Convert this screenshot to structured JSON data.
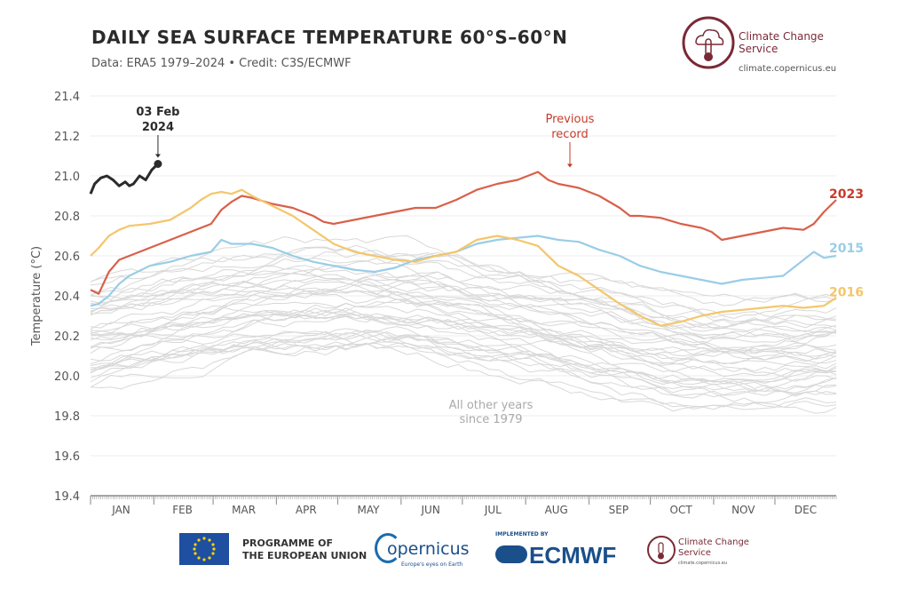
{
  "header": {
    "title": "DAILY SEA SURFACE TEMPERATURE 60°S–60°N",
    "subtitle": "Data: ERA5 1979–2024 • Credit: C3S/ECMWF"
  },
  "logo": {
    "name": "Climate Change Service",
    "url": "climate.copernicus.eu"
  },
  "footer": {
    "eu_line1": "PROGRAMME OF",
    "eu_line2": "THE EUROPEAN UNION",
    "copernicus_word": "opernicus",
    "copernicus_tag": "Europe's eyes on Earth",
    "ecmwf_impl": "IMPLEMENTED BY",
    "ecmwf_word": "ECMWF",
    "c3s_name": "Climate Change Service",
    "c3s_url": "climate.copernicus.eu"
  },
  "colors": {
    "y2023": "#d9604a",
    "y2015": "#9acde6",
    "y2016": "#f4c66b",
    "y2024": "#2b2b2b",
    "other": "#d8d8d8",
    "label2023": "#c63b2b",
    "annotation_red": "#c63b2b"
  },
  "chart_data": {
    "type": "line",
    "ylabel": "Temperature (°C)",
    "ylim": [
      19.4,
      21.4
    ],
    "yticks": [
      19.4,
      19.6,
      19.8,
      20.0,
      20.2,
      20.4,
      20.6,
      20.8,
      21.0,
      21.2,
      21.4
    ],
    "ytick_labels": [
      "19.4",
      "19.6",
      "19.8",
      "20.0",
      "20.2",
      "20.4",
      "20.6",
      "20.8",
      "21.0",
      "21.2",
      "21.4"
    ],
    "xlim": [
      1,
      366
    ],
    "months": [
      "JAN",
      "FEB",
      "MAR",
      "APR",
      "MAY",
      "JUN",
      "JUL",
      "AUG",
      "SEP",
      "OCT",
      "NOV",
      "DEC"
    ],
    "grid": true,
    "series": [
      {
        "name": "2023",
        "key": "y2023",
        "x": [
          1,
          5,
          10,
          15,
          20,
          30,
          40,
          50,
          60,
          65,
          70,
          75,
          80,
          90,
          100,
          110,
          115,
          120,
          130,
          140,
          150,
          160,
          170,
          180,
          190,
          200,
          210,
          215,
          220,
          225,
          230,
          240,
          250,
          260,
          265,
          270,
          280,
          290,
          300,
          305,
          310,
          320,
          330,
          340,
          350,
          355,
          360,
          366
        ],
        "y": [
          20.43,
          20.41,
          20.52,
          20.58,
          20.6,
          20.64,
          20.68,
          20.72,
          20.76,
          20.83,
          20.87,
          20.9,
          20.89,
          20.86,
          20.84,
          20.8,
          20.77,
          20.76,
          20.78,
          20.8,
          20.82,
          20.84,
          20.84,
          20.88,
          20.93,
          20.96,
          20.98,
          21.0,
          21.02,
          20.98,
          20.96,
          20.94,
          20.9,
          20.84,
          20.8,
          20.8,
          20.79,
          20.76,
          20.74,
          20.72,
          20.68,
          20.7,
          20.72,
          20.74,
          20.73,
          20.76,
          20.82,
          20.88
        ]
      },
      {
        "name": "2015",
        "key": "y2015",
        "x": [
          1,
          5,
          10,
          15,
          20,
          30,
          40,
          50,
          60,
          65,
          70,
          80,
          90,
          100,
          110,
          120,
          130,
          140,
          150,
          160,
          170,
          180,
          190,
          200,
          210,
          220,
          230,
          240,
          250,
          260,
          270,
          280,
          290,
          300,
          310,
          320,
          330,
          340,
          350,
          355,
          360,
          366
        ],
        "y": [
          20.35,
          20.36,
          20.4,
          20.46,
          20.5,
          20.55,
          20.57,
          20.6,
          20.62,
          20.68,
          20.66,
          20.66,
          20.64,
          20.6,
          20.57,
          20.55,
          20.53,
          20.52,
          20.54,
          20.58,
          20.6,
          20.62,
          20.66,
          20.68,
          20.69,
          20.7,
          20.68,
          20.67,
          20.63,
          20.6,
          20.55,
          20.52,
          20.5,
          20.48,
          20.46,
          20.48,
          20.49,
          20.5,
          20.58,
          20.62,
          20.59,
          20.6
        ]
      },
      {
        "name": "2016",
        "key": "y2016",
        "x": [
          1,
          5,
          10,
          15,
          20,
          30,
          40,
          50,
          55,
          60,
          65,
          70,
          75,
          80,
          90,
          100,
          110,
          120,
          130,
          140,
          150,
          160,
          170,
          180,
          190,
          200,
          210,
          220,
          230,
          240,
          250,
          260,
          270,
          280,
          290,
          300,
          310,
          320,
          330,
          340,
          350,
          360,
          366
        ],
        "y": [
          20.6,
          20.64,
          20.7,
          20.73,
          20.75,
          20.76,
          20.78,
          20.84,
          20.88,
          20.91,
          20.92,
          20.91,
          20.93,
          20.9,
          20.85,
          20.8,
          20.73,
          20.66,
          20.62,
          20.6,
          20.58,
          20.57,
          20.6,
          20.62,
          20.68,
          20.7,
          20.68,
          20.65,
          20.55,
          20.5,
          20.43,
          20.36,
          20.3,
          20.25,
          20.27,
          20.3,
          20.32,
          20.33,
          20.34,
          20.35,
          20.34,
          20.35,
          20.39
        ]
      },
      {
        "name": "2024",
        "key": "y2024",
        "x": [
          1,
          3,
          6,
          9,
          12,
          15,
          18,
          20,
          22,
          25,
          28,
          31,
          34,
          34
        ],
        "y": [
          20.91,
          20.96,
          20.99,
          21.0,
          20.98,
          20.95,
          20.97,
          20.95,
          20.96,
          21.0,
          20.98,
          21.03,
          21.06,
          21.06
        ]
      }
    ],
    "annotations": [
      {
        "text_line1": "03 Feb",
        "text_line2": "2024",
        "x": 34,
        "y": 21.06
      },
      {
        "text_line1": "Previous",
        "text_line2": "record",
        "x": 235,
        "y": 21.02
      },
      {
        "text_line1": "All other years",
        "text_line2": "since 1979",
        "x": 210,
        "y": 19.86
      }
    ]
  }
}
